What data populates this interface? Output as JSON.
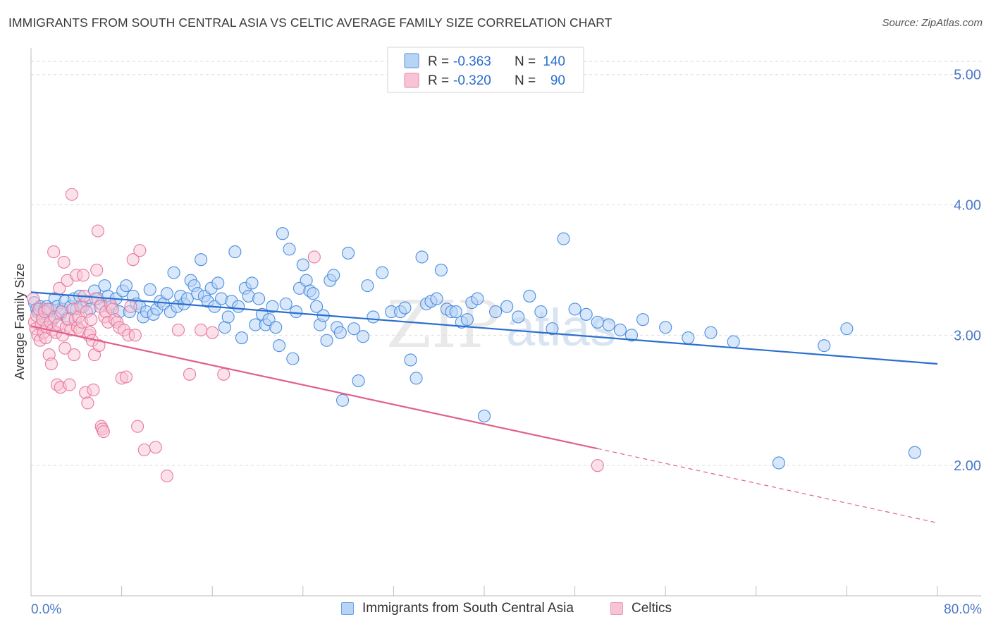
{
  "title": "IMMIGRANTS FROM SOUTH CENTRAL ASIA VS CELTIC AVERAGE FAMILY SIZE CORRELATION CHART",
  "source": "Source: ZipAtlas.com",
  "watermark": {
    "zip": "ZIP",
    "atlas": "atlas"
  },
  "colors": {
    "blue": "#4a8fe0",
    "blue_fill": "#b8d4f5",
    "blue_line": "#2a6fcf",
    "pink": "#e87aa0",
    "pink_fill": "#f8c3d4",
    "pink_line": "#e0608c",
    "grid": "#dcdcdc",
    "tick_label": "#4a78c8"
  },
  "legend_top": {
    "rows": [
      {
        "r_label": "R =",
        "r_value": "-0.363",
        "n_label": "N =",
        "n_value": "140"
      },
      {
        "r_label": "R =",
        "r_value": "-0.320",
        "n_label": "N =",
        "n_value": "90"
      }
    ]
  },
  "legend_bottom": {
    "items": [
      {
        "label": "Immigrants from South Central Asia"
      },
      {
        "label": "Celtics"
      }
    ]
  },
  "chart_data": {
    "type": "scatter",
    "title": "IMMIGRANTS FROM SOUTH CENTRAL ASIA VS CELTIC AVERAGE FAMILY SIZE CORRELATION CHART",
    "xlabel": "",
    "ylabel": "Average Family Size",
    "xlim": [
      0,
      80
    ],
    "ylim": [
      1.0,
      5.15
    ],
    "x_tick_labels": [
      "0.0%",
      "80.0%"
    ],
    "y_ticks": [
      2.0,
      3.0,
      4.0,
      5.0
    ],
    "y_tick_labels": [
      "2.00",
      "3.00",
      "4.00",
      "5.00"
    ],
    "grid": true,
    "series": [
      {
        "name": "Immigrants from South Central Asia",
        "r": -0.363,
        "n": 140,
        "trend": {
          "x0": 0,
          "y0": 3.33,
          "x1": 80,
          "y1": 2.78
        },
        "points": [
          [
            0.3,
            3.25
          ],
          [
            0.5,
            3.2
          ],
          [
            0.6,
            3.18
          ],
          [
            0.8,
            3.22
          ],
          [
            1.0,
            3.15
          ],
          [
            1.2,
            3.2
          ],
          [
            1.4,
            3.22
          ],
          [
            1.5,
            3.18
          ],
          [
            1.7,
            3.2
          ],
          [
            1.9,
            3.12
          ],
          [
            2.1,
            3.28
          ],
          [
            2.3,
            3.22
          ],
          [
            2.6,
            3.16
          ],
          [
            2.8,
            3.2
          ],
          [
            3.0,
            3.26
          ],
          [
            3.2,
            3.13
          ],
          [
            3.5,
            3.22
          ],
          [
            3.8,
            3.28
          ],
          [
            4.0,
            3.2
          ],
          [
            4.3,
            3.3
          ],
          [
            4.6,
            3.22
          ],
          [
            4.9,
            3.26
          ],
          [
            5.2,
            3.2
          ],
          [
            5.6,
            3.34
          ],
          [
            5.9,
            3.28
          ],
          [
            6.2,
            3.24
          ],
          [
            6.5,
            3.38
          ],
          [
            6.8,
            3.3
          ],
          [
            7.1,
            3.22
          ],
          [
            7.5,
            3.28
          ],
          [
            7.8,
            3.18
          ],
          [
            8.1,
            3.34
          ],
          [
            8.4,
            3.38
          ],
          [
            8.7,
            3.18
          ],
          [
            9.0,
            3.3
          ],
          [
            9.3,
            3.24
          ],
          [
            9.6,
            3.22
          ],
          [
            9.9,
            3.14
          ],
          [
            10.2,
            3.18
          ],
          [
            10.5,
            3.35
          ],
          [
            10.8,
            3.16
          ],
          [
            11.1,
            3.2
          ],
          [
            11.4,
            3.26
          ],
          [
            11.7,
            3.24
          ],
          [
            12.0,
            3.32
          ],
          [
            12.3,
            3.18
          ],
          [
            12.6,
            3.48
          ],
          [
            12.9,
            3.22
          ],
          [
            13.2,
            3.3
          ],
          [
            13.5,
            3.24
          ],
          [
            13.8,
            3.28
          ],
          [
            14.1,
            3.42
          ],
          [
            14.4,
            3.38
          ],
          [
            14.7,
            3.32
          ],
          [
            15.0,
            3.58
          ],
          [
            15.3,
            3.3
          ],
          [
            15.6,
            3.26
          ],
          [
            15.9,
            3.36
          ],
          [
            16.2,
            3.22
          ],
          [
            16.5,
            3.4
          ],
          [
            16.8,
            3.28
          ],
          [
            17.1,
            3.06
          ],
          [
            17.4,
            3.14
          ],
          [
            17.7,
            3.26
          ],
          [
            18.0,
            3.64
          ],
          [
            18.3,
            3.22
          ],
          [
            18.6,
            2.98
          ],
          [
            18.9,
            3.36
          ],
          [
            19.2,
            3.3
          ],
          [
            19.5,
            3.4
          ],
          [
            19.8,
            3.08
          ],
          [
            20.1,
            3.28
          ],
          [
            20.4,
            3.16
          ],
          [
            20.7,
            3.08
          ],
          [
            21.0,
            3.12
          ],
          [
            21.3,
            3.22
          ],
          [
            21.6,
            3.06
          ],
          [
            21.9,
            2.92
          ],
          [
            22.2,
            3.78
          ],
          [
            22.5,
            3.24
          ],
          [
            22.8,
            3.66
          ],
          [
            23.1,
            2.82
          ],
          [
            23.4,
            3.18
          ],
          [
            23.7,
            3.36
          ],
          [
            24.0,
            3.54
          ],
          [
            24.3,
            3.42
          ],
          [
            24.6,
            3.34
          ],
          [
            24.9,
            3.32
          ],
          [
            25.2,
            3.22
          ],
          [
            25.5,
            3.08
          ],
          [
            25.8,
            3.15
          ],
          [
            26.1,
            2.96
          ],
          [
            26.4,
            3.42
          ],
          [
            26.7,
            3.46
          ],
          [
            27.0,
            3.06
          ],
          [
            27.3,
            3.02
          ],
          [
            28.0,
            3.63
          ],
          [
            28.5,
            3.05
          ],
          [
            28.9,
            2.65
          ],
          [
            29.3,
            2.99
          ],
          [
            29.7,
            3.38
          ],
          [
            30.2,
            3.14
          ],
          [
            31.0,
            3.48
          ],
          [
            31.8,
            3.18
          ],
          [
            32.6,
            3.18
          ],
          [
            33.0,
            3.21
          ],
          [
            33.5,
            2.81
          ],
          [
            34.0,
            2.67
          ],
          [
            34.5,
            3.6
          ],
          [
            34.9,
            3.24
          ],
          [
            35.3,
            3.26
          ],
          [
            35.8,
            3.28
          ],
          [
            36.2,
            3.5
          ],
          [
            36.7,
            3.2
          ],
          [
            37.1,
            3.18
          ],
          [
            37.5,
            3.18
          ],
          [
            38.0,
            3.1
          ],
          [
            38.5,
            3.12
          ],
          [
            38.9,
            3.25
          ],
          [
            39.4,
            3.28
          ],
          [
            40.0,
            2.38
          ],
          [
            41.0,
            3.18
          ],
          [
            42.0,
            3.22
          ],
          [
            43.0,
            3.14
          ],
          [
            44.0,
            3.3
          ],
          [
            45.0,
            3.18
          ],
          [
            46.0,
            3.05
          ],
          [
            47.0,
            3.74
          ],
          [
            48.0,
            3.2
          ],
          [
            49.0,
            3.16
          ],
          [
            50.0,
            3.1
          ],
          [
            51.0,
            3.08
          ],
          [
            52.0,
            3.04
          ],
          [
            53.0,
            3.0
          ],
          [
            54.0,
            3.12
          ],
          [
            56.0,
            3.06
          ],
          [
            58.0,
            2.98
          ],
          [
            60.0,
            3.02
          ],
          [
            62.0,
            2.95
          ],
          [
            66.0,
            2.02
          ],
          [
            70.0,
            2.92
          ],
          [
            72.0,
            3.05
          ],
          [
            78.0,
            2.1
          ],
          [
            27.5,
            2.5
          ]
        ]
      },
      {
        "name": "Celtics",
        "r": -0.32,
        "n": 90,
        "trend": {
          "x0": 0,
          "y0": 3.07,
          "x1": 50,
          "y1": 2.13,
          "dash_x1": 80,
          "dash_y1": 1.56
        },
        "points": [
          [
            0.2,
            3.28
          ],
          [
            0.3,
            3.1
          ],
          [
            0.4,
            3.05
          ],
          [
            0.5,
            3.15
          ],
          [
            0.6,
            3.0
          ],
          [
            0.7,
            3.2
          ],
          [
            0.8,
            2.96
          ],
          [
            0.9,
            3.08
          ],
          [
            1.0,
            3.12
          ],
          [
            1.1,
            3.02
          ],
          [
            1.2,
            3.18
          ],
          [
            1.3,
            2.98
          ],
          [
            1.4,
            3.06
          ],
          [
            1.5,
            3.2
          ],
          [
            1.6,
            2.85
          ],
          [
            1.7,
            3.1
          ],
          [
            1.8,
            2.78
          ],
          [
            1.9,
            3.04
          ],
          [
            2.0,
            3.64
          ],
          [
            2.1,
            3.14
          ],
          [
            2.2,
            3.02
          ],
          [
            2.3,
            2.62
          ],
          [
            2.4,
            3.08
          ],
          [
            2.5,
            3.36
          ],
          [
            2.6,
            2.6
          ],
          [
            2.7,
            3.18
          ],
          [
            2.8,
            3.0
          ],
          [
            2.9,
            3.56
          ],
          [
            3.0,
            2.9
          ],
          [
            3.1,
            3.06
          ],
          [
            3.2,
            3.42
          ],
          [
            3.3,
            3.12
          ],
          [
            3.4,
            2.62
          ],
          [
            3.5,
            3.04
          ],
          [
            3.6,
            4.08
          ],
          [
            3.7,
            3.2
          ],
          [
            3.8,
            2.85
          ],
          [
            3.9,
            3.12
          ],
          [
            4.0,
            3.46
          ],
          [
            4.1,
            3.06
          ],
          [
            4.2,
            3.14
          ],
          [
            4.3,
            3.04
          ],
          [
            4.4,
            3.22
          ],
          [
            4.5,
            3.1
          ],
          [
            4.6,
            3.46
          ],
          [
            4.7,
            3.3
          ],
          [
            4.8,
            2.56
          ],
          [
            4.9,
            3.18
          ],
          [
            5.0,
            2.48
          ],
          [
            5.1,
            3.0
          ],
          [
            5.2,
            3.02
          ],
          [
            5.3,
            3.12
          ],
          [
            5.4,
            2.96
          ],
          [
            5.5,
            2.58
          ],
          [
            5.6,
            2.85
          ],
          [
            5.7,
            3.28
          ],
          [
            5.8,
            3.5
          ],
          [
            5.9,
            3.8
          ],
          [
            6.0,
            2.92
          ],
          [
            6.1,
            3.22
          ],
          [
            6.2,
            2.3
          ],
          [
            6.3,
            2.28
          ],
          [
            6.4,
            2.26
          ],
          [
            6.5,
            3.14
          ],
          [
            6.6,
            3.18
          ],
          [
            6.8,
            3.1
          ],
          [
            7.0,
            3.24
          ],
          [
            7.2,
            3.2
          ],
          [
            7.4,
            3.12
          ],
          [
            7.6,
            3.1
          ],
          [
            7.8,
            3.06
          ],
          [
            8.0,
            2.67
          ],
          [
            8.2,
            3.04
          ],
          [
            8.4,
            2.68
          ],
          [
            8.6,
            3.0
          ],
          [
            8.8,
            3.22
          ],
          [
            9.0,
            3.58
          ],
          [
            9.2,
            3.0
          ],
          [
            9.4,
            2.3
          ],
          [
            9.6,
            3.65
          ],
          [
            10.0,
            2.12
          ],
          [
            11.0,
            2.14
          ],
          [
            12.0,
            1.92
          ],
          [
            13.0,
            3.04
          ],
          [
            14.0,
            2.7
          ],
          [
            15.0,
            3.04
          ],
          [
            16.0,
            3.02
          ],
          [
            17.0,
            2.7
          ],
          [
            25.0,
            3.6
          ],
          [
            50.0,
            2.0
          ]
        ]
      }
    ]
  }
}
